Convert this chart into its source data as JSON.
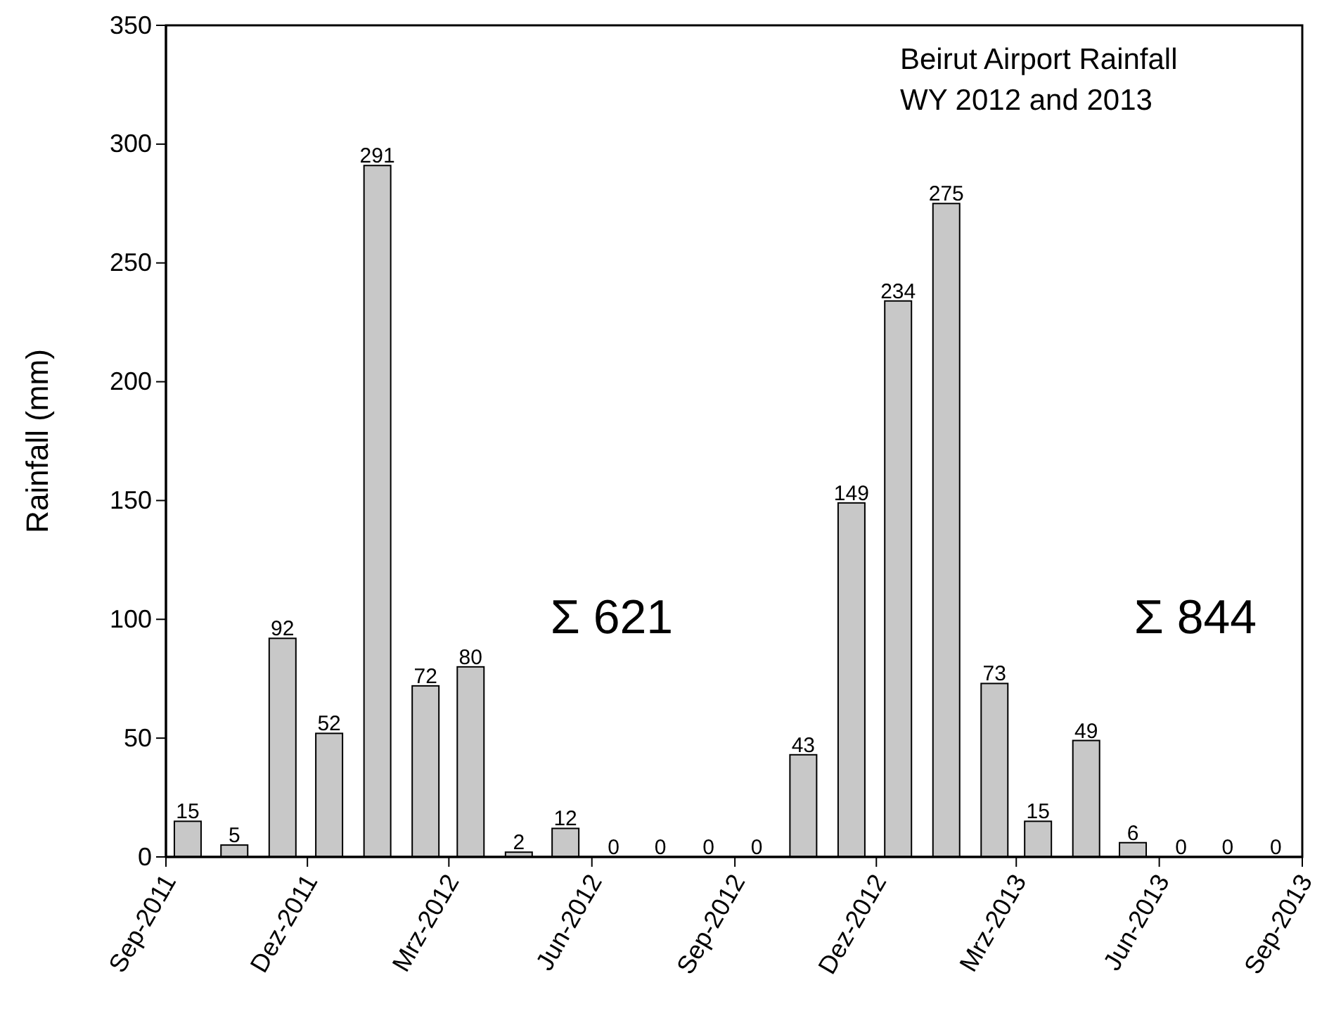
{
  "chart_data": {
    "type": "bar",
    "title": "Beirut Airport Rainfall\nWY 2012 and 2013",
    "ylabel": "Rainfall (mm)",
    "x": [
      "2011-09-15",
      "2011-10-15",
      "2011-11-15",
      "2011-12-15",
      "2012-01-15",
      "2012-02-15",
      "2012-03-15",
      "2012-04-15",
      "2012-05-15",
      "2012-06-15",
      "2012-07-15",
      "2012-08-15",
      "2012-09-15",
      "2012-10-15",
      "2012-11-15",
      "2012-12-15",
      "2013-01-15",
      "2013-02-15",
      "2013-03-15",
      "2013-04-15",
      "2013-05-15",
      "2013-06-15",
      "2013-07-15",
      "2013-08-15"
    ],
    "values": [
      15,
      5,
      92,
      52,
      291,
      72,
      80,
      2,
      12,
      0,
      0,
      0,
      0,
      43,
      149,
      234,
      275,
      73,
      15,
      49,
      6,
      0,
      0,
      0
    ],
    "color": "#c8c8c8",
    "data_labels": true,
    "grid": false,
    "xlim": [
      "2011-09",
      "2013-09"
    ],
    "xticks": [
      {
        "value": "2011-09",
        "label": "Sep-2011"
      },
      {
        "value": "2011-12",
        "label": "Dez-2011"
      },
      {
        "value": "2012-03",
        "label": "Mrz-2012"
      },
      {
        "value": "2012-06",
        "label": "Jun-2012"
      },
      {
        "value": "2012-09",
        "label": "Sep-2012"
      },
      {
        "value": "2012-12",
        "label": "Dez-2012"
      },
      {
        "value": "2013-03",
        "label": "Mrz-2013"
      },
      {
        "value": "2013-06",
        "label": "Jun-2013"
      },
      {
        "value": "2013-09",
        "label": "Sep-2013"
      }
    ],
    "ylim": [
      0,
      350
    ],
    "yticks": [
      0,
      50,
      100,
      150,
      200,
      250,
      300,
      350
    ],
    "annotations": [
      "Σ 621",
      "Σ 844"
    ]
  }
}
